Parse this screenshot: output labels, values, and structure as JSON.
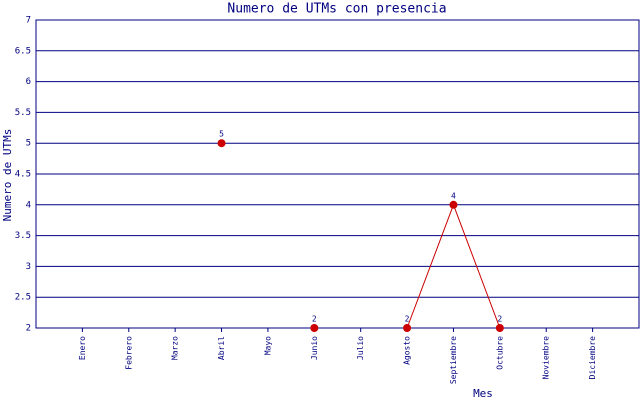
{
  "chart_data": {
    "type": "line",
    "title": "Numero de UTMs con presencia",
    "x_label": "Mes",
    "y_label": "Numero de UTMs",
    "categories": [
      "Enero",
      "Febrero",
      "Marzo",
      "Abril",
      "Mayo",
      "Junio",
      "Julio",
      "Agosto",
      "Septiembre",
      "Octubre",
      "Noviembre",
      "Diciembre"
    ],
    "values": [
      null,
      null,
      null,
      5,
      null,
      2,
      null,
      2,
      4,
      2,
      null,
      null
    ],
    "color": "#cc0000",
    "ylim": [
      2,
      7
    ],
    "yticks": [
      2,
      2.5,
      3,
      3.5,
      4,
      4.5,
      5,
      5.5,
      6,
      6.5,
      7
    ],
    "grid": true
  }
}
